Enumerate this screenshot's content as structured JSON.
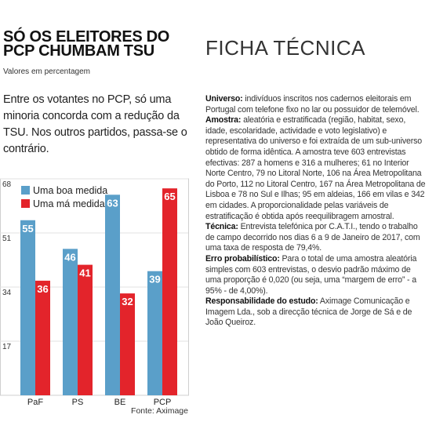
{
  "chart_data": {
    "type": "bar",
    "title": "SÓ OS ELEITORES DO PCP CHUMBAM TSU",
    "subtitle": "Valores em percentagem",
    "description": "Entre os votantes no PCP, só uma minoria concorda com a redução da TSU. Nos outros partidos, passa-se o contrário.",
    "categories": [
      "PaF",
      "PS",
      "BE",
      "PCP"
    ],
    "series": [
      {
        "name": "Uma boa medida",
        "color": "#5a9fc9",
        "values": [
          55,
          46,
          63,
          39
        ]
      },
      {
        "name": "Uma má medida",
        "color": "#e3242b",
        "values": [
          36,
          41,
          32,
          65
        ]
      }
    ],
    "ylim": [
      0,
      68
    ],
    "yticks": [
      17,
      34,
      51,
      68
    ],
    "grid": true,
    "legend": "upper left",
    "source": "Fonte: Aximage"
  },
  "ficha": {
    "title": "FICHA TÉCNICA",
    "sections": [
      {
        "label": "Universo:",
        "text": "indivíduos inscritos nos cadernos eleitorais em Portugal com telefone fixo no lar ou possuidor de telemóvel."
      },
      {
        "label": "Amostra:",
        "text": "aleatória e estratificada (região, habitat, sexo, idade, escolaridade, actividade e voto legislativo) e representativa do universo e foi extraída de um sub-universo obtido de forma idêntica. A amostra teve 603 entrevistas efectivas: 287 a homens e 316 a mulheres; 61 no Interior Norte Centro, 79 no Litoral Norte, 106 na Área Metropolitana do Porto, 112 no Litoral Centro, 167 na Área Metropolitana de Lisboa e 78 no Sul e Ilhas; 95 em aldeias, 166 em vilas e 342 em cidades. A proporcionalidade pelas variáveis de estratificação é obtida após reequilibragem amostral."
      },
      {
        "label": "Técnica:",
        "text": "Entrevista telefónica por C.A.T.I., tendo o trabalho de campo decorrido nos dias 6 a 9 de Janeiro de 2017, com uma taxa de resposta de 79,4%."
      },
      {
        "label": "Erro probabilístico:",
        "text": "Para o total de uma amostra aleatória simples com 603 entrevistas, o desvio padrão máximo de uma proporção é 0,020 (ou seja, uma “margem de erro” - a 95% - de 4,00%)."
      },
      {
        "label": "Responsabilidade do estudo:",
        "text": "Aximage Comunicação e Imagem Lda., sob a direcção técnica de Jorge de Sá e de João Queiroz."
      }
    ]
  }
}
